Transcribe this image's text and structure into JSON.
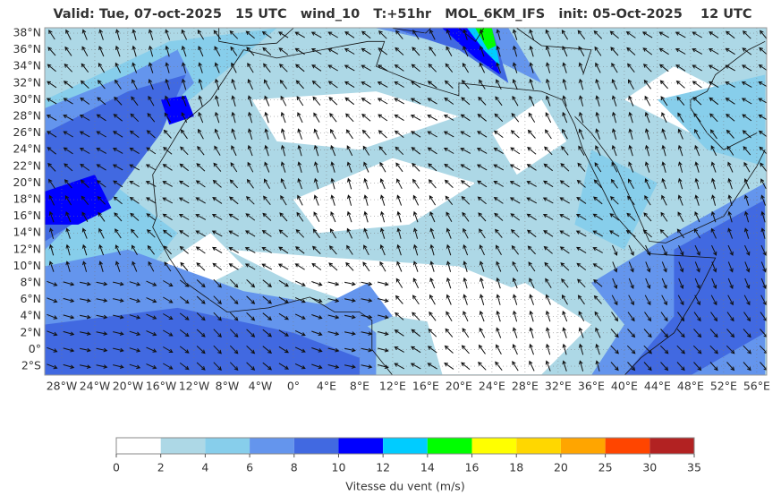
{
  "header": {
    "title": "Valid: Tue, 07-oct-2025   15 UTC   wind_10   T:+51hr   MOL_6KM_IFS   init: 05-Oct-2025    12 UTC"
  },
  "map": {
    "latitudes": [
      {
        "value": 38,
        "label": "38°N"
      },
      {
        "value": 36,
        "label": "36°N"
      },
      {
        "value": 34,
        "label": "34°N"
      },
      {
        "value": 32,
        "label": "32°N"
      },
      {
        "value": 30,
        "label": "30°N"
      },
      {
        "value": 28,
        "label": "28°N"
      },
      {
        "value": 26,
        "label": "26°N"
      },
      {
        "value": 24,
        "label": "24°N"
      },
      {
        "value": 22,
        "label": "22°N"
      },
      {
        "value": 20,
        "label": "20°N"
      },
      {
        "value": 18,
        "label": "18°N"
      },
      {
        "value": 16,
        "label": "16°N"
      },
      {
        "value": 14,
        "label": "14°N"
      },
      {
        "value": 12,
        "label": "12°N"
      },
      {
        "value": 10,
        "label": "10°N"
      },
      {
        "value": 8,
        "label": "8°N"
      },
      {
        "value": 6,
        "label": "6°N"
      },
      {
        "value": 4,
        "label": "4°N"
      },
      {
        "value": 2,
        "label": "2°N"
      },
      {
        "value": 0,
        "label": "0°"
      },
      {
        "value": -2,
        "label": "2°S"
      }
    ],
    "longitudes": [
      {
        "value": -28,
        "label": "28°W"
      },
      {
        "value": -24,
        "label": "24°W"
      },
      {
        "value": -20,
        "label": "20°W"
      },
      {
        "value": -16,
        "label": "16°W"
      },
      {
        "value": -12,
        "label": "12°W"
      },
      {
        "value": -8,
        "label": "8°W"
      },
      {
        "value": -4,
        "label": "4°W"
      },
      {
        "value": 0,
        "label": "0°"
      },
      {
        "value": 4,
        "label": "4°E"
      },
      {
        "value": 8,
        "label": "8°E"
      },
      {
        "value": 12,
        "label": "12°E"
      },
      {
        "value": 16,
        "label": "16°E"
      },
      {
        "value": 20,
        "label": "20°E"
      },
      {
        "value": 24,
        "label": "24°E"
      },
      {
        "value": 28,
        "label": "28°E"
      },
      {
        "value": 32,
        "label": "32°E"
      },
      {
        "value": 36,
        "label": "36°E"
      },
      {
        "value": 40,
        "label": "40°E"
      },
      {
        "value": 44,
        "label": "44°E"
      },
      {
        "value": 48,
        "label": "48°E"
      },
      {
        "value": 52,
        "label": "52°E"
      },
      {
        "value": 56,
        "label": "56°E"
      }
    ]
  },
  "colorbar": {
    "label": "Vitesse du vent (m/s)",
    "ticks": [
      0,
      2,
      4,
      6,
      8,
      10,
      12,
      14,
      16,
      18,
      20,
      25,
      30,
      35
    ],
    "colors": [
      "#ffffff",
      "#add8e6",
      "#87ceeb",
      "#6495ed",
      "#4169e1",
      "#0000ff",
      "#00ccff",
      "#00ff00",
      "#ffff00",
      "#ffd700",
      "#ffa500",
      "#ff4500",
      "#b22222"
    ]
  }
}
